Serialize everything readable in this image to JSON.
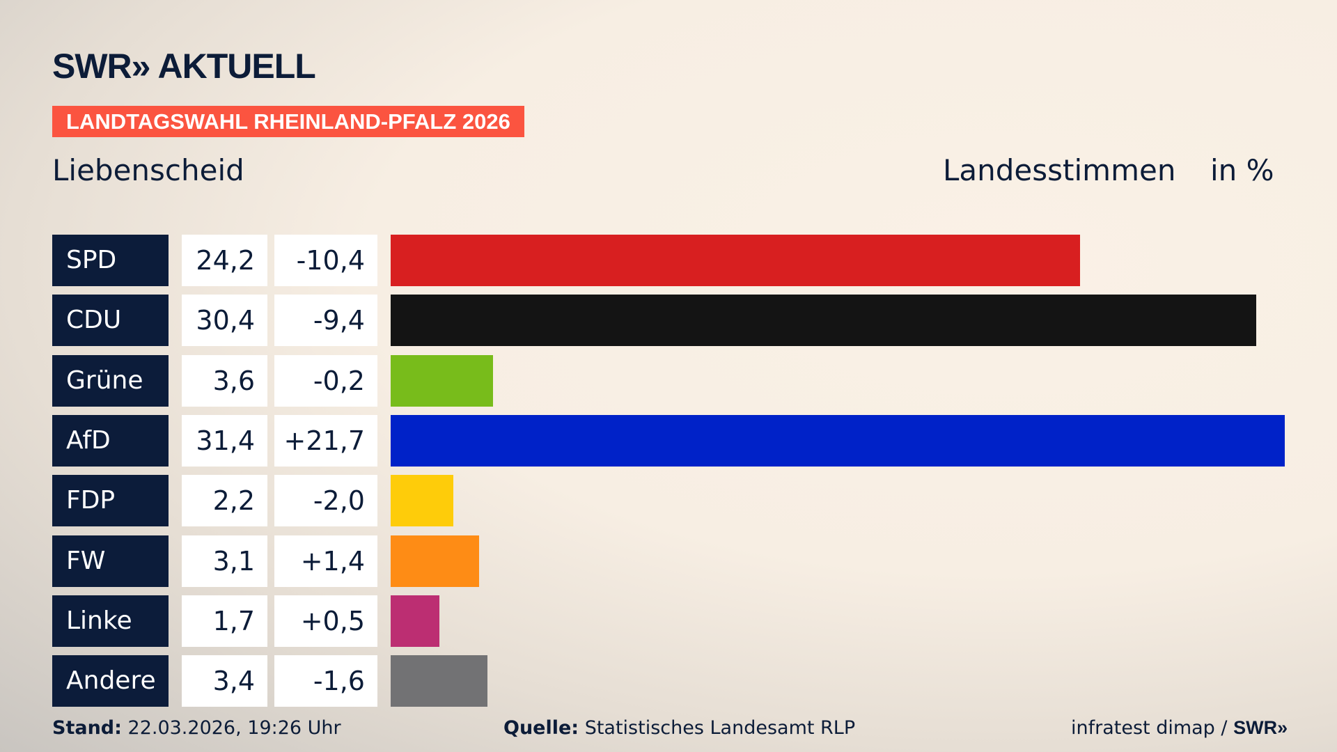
{
  "logo": "SWR» AKTUELL",
  "banner": "LANDTAGSWAHL RHEINLAND-PFALZ 2026",
  "place": "Liebenscheid",
  "header_left": "Landesstimmen",
  "header_right": "in %",
  "chart_data": {
    "type": "bar",
    "orientation": "horizontal",
    "categories": [
      "SPD",
      "CDU",
      "Grüne",
      "AfD",
      "FDP",
      "FW",
      "Linke",
      "Andere"
    ],
    "values": [
      24.2,
      30.4,
      3.6,
      31.4,
      2.2,
      3.1,
      1.7,
      3.4
    ],
    "value_labels": [
      "24,2",
      "30,4",
      "3,6",
      "31,4",
      "2,2",
      "3,1",
      "1,7",
      "3,4"
    ],
    "diff_labels": [
      "-10,4",
      "-9,4",
      "-0,2",
      "+21,7",
      "-2,0",
      "+1,4",
      "+0,5",
      "-1,6"
    ],
    "colors": [
      "#d81f20",
      "#141414",
      "#78bc1b",
      "#0022c8",
      "#fecc0a",
      "#fe8c15",
      "#bc2e72",
      "#727274"
    ]
  },
  "footer": {
    "stand_label": "Stand:",
    "stand_value": "22.03.2026, 19:26 Uhr",
    "source_label": "Quelle:",
    "source_value": "Statistisches Landesamt RLP",
    "credit": "infratest dimap /",
    "credit_logo": "SWR»"
  }
}
